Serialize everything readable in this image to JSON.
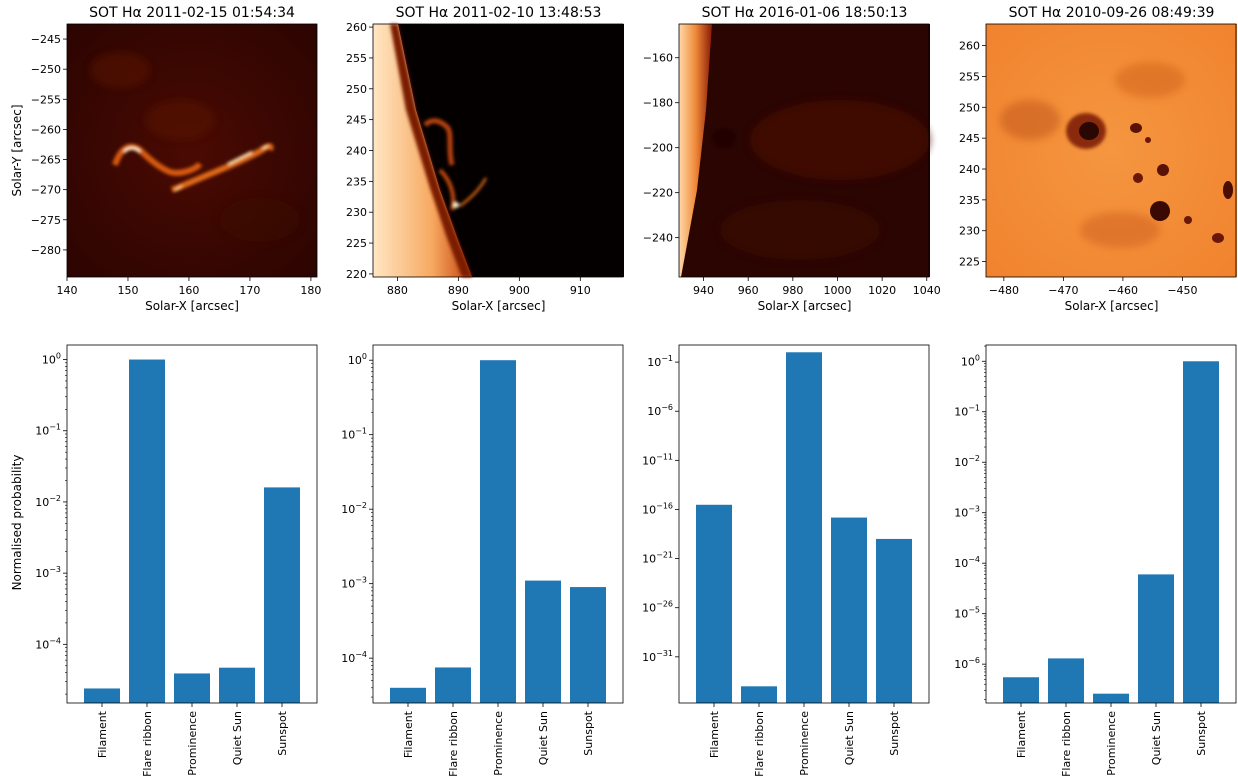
{
  "chart_data": [
    {
      "type": "heatmap",
      "title": "SOT Hα 2011-02-15 01:54:34",
      "xlabel": "Solar-X [arcsec]",
      "ylabel": "Solar-Y [arcsec]",
      "xlim": [
        140,
        181
      ],
      "ylim": [
        -284.5,
        -242.5
      ],
      "xticks": [
        "140",
        "150",
        "160",
        "170",
        "180"
      ],
      "yticks": [
        "−245",
        "−250",
        "−255",
        "−260",
        "−265",
        "−270",
        "−275",
        "−280"
      ],
      "colormap": "dark red / hot",
      "content": "flare ribbon"
    },
    {
      "type": "heatmap",
      "title": "SOT Hα 2011-02-10 13:48:53",
      "xlabel": "Solar-X [arcsec]",
      "ylabel": "",
      "xlim": [
        876,
        917
      ],
      "ylim": [
        219.5,
        260.5
      ],
      "xticks": [
        "880",
        "890",
        "900",
        "910"
      ],
      "yticks": [
        "220",
        "225",
        "230",
        "235",
        "240",
        "245",
        "250",
        "255",
        "260"
      ],
      "colormap": "orange / hot",
      "content": "prominence at the solar limb"
    },
    {
      "type": "heatmap",
      "title": "SOT Hα 2016-01-06 18:50:13",
      "xlabel": "Solar-X [arcsec]",
      "ylabel": "",
      "xlim": [
        929,
        1041
      ],
      "ylim": [
        -257.5,
        -145
      ],
      "xticks": [
        "940",
        "960",
        "980",
        "1000",
        "1020",
        "1040"
      ],
      "yticks": [
        "−160",
        "−180",
        "−200",
        "−220",
        "−240"
      ],
      "colormap": "dark red / hot",
      "content": "prominence at the solar limb"
    },
    {
      "type": "heatmap",
      "title": "SOT Hα 2010-09-26 08:49:39",
      "xlabel": "Solar-X [arcsec]",
      "ylabel": "",
      "xlim": [
        -483,
        -441
      ],
      "ylim": [
        222.5,
        263.5
      ],
      "xticks": [
        "−480",
        "−470",
        "−460",
        "−450"
      ],
      "yticks": [
        "225",
        "230",
        "235",
        "240",
        "245",
        "250",
        "255",
        "260"
      ],
      "colormap": "orange / hot",
      "content": "sunspots"
    },
    {
      "type": "bar",
      "yscale": "log",
      "ylabel": "Normalised probability",
      "categories": [
        "Filament",
        "Flare ribbon",
        "Prominence",
        "Quiet Sun",
        "Sunspot"
      ],
      "values": [
        2.4e-05,
        1.0,
        3.9e-05,
        4.7e-05,
        0.016
      ],
      "ylim": [
        1.5e-05,
        1.6
      ],
      "yticks": [
        {
          "v": 0.0001,
          "base": "10",
          "exp": "−4"
        },
        {
          "v": 0.001,
          "base": "10",
          "exp": "−3"
        },
        {
          "v": 0.01,
          "base": "10",
          "exp": "−2"
        },
        {
          "v": 0.1,
          "base": "10",
          "exp": "−1"
        },
        {
          "v": 1,
          "base": "10",
          "exp": "0"
        }
      ],
      "color": "#1f77b4"
    },
    {
      "type": "bar",
      "yscale": "log",
      "ylabel": "",
      "categories": [
        "Filament",
        "Flare ribbon",
        "Prominence",
        "Quiet Sun",
        "Sunspot"
      ],
      "values": [
        4e-05,
        7.5e-05,
        1.0,
        0.0011,
        0.0009
      ],
      "ylim": [
        2.5e-05,
        1.6
      ],
      "yticks": [
        {
          "v": 0.0001,
          "base": "10",
          "exp": "−4"
        },
        {
          "v": 0.001,
          "base": "10",
          "exp": "−3"
        },
        {
          "v": 0.01,
          "base": "10",
          "exp": "−2"
        },
        {
          "v": 0.1,
          "base": "10",
          "exp": "−1"
        },
        {
          "v": 1,
          "base": "10",
          "exp": "0"
        }
      ],
      "color": "#1f77b4"
    },
    {
      "type": "bar",
      "yscale": "log",
      "ylabel": "",
      "categories": [
        "Filament",
        "Flare ribbon",
        "Prominence",
        "Quiet Sun",
        "Sunspot"
      ],
      "values": [
        3e-16,
        1e-34,
        1.0,
        1.5e-17,
        1e-19
      ],
      "ylim": [
        2e-36,
        5.5
      ],
      "yticks": [
        {
          "v": 1e-31,
          "base": "10",
          "exp": "−31"
        },
        {
          "v": 1e-26,
          "base": "10",
          "exp": "−26"
        },
        {
          "v": 1e-21,
          "base": "10",
          "exp": "−21"
        },
        {
          "v": 1e-16,
          "base": "10",
          "exp": "−16"
        },
        {
          "v": 1e-11,
          "base": "10",
          "exp": "−11"
        },
        {
          "v": 1e-06,
          "base": "10",
          "exp": "−6"
        },
        {
          "v": 0.1,
          "base": "10",
          "exp": "−1"
        }
      ],
      "color": "#1f77b4"
    },
    {
      "type": "bar",
      "yscale": "log",
      "ylabel": "",
      "categories": [
        "Filament",
        "Flare ribbon",
        "Prominence",
        "Quiet Sun",
        "Sunspot"
      ],
      "values": [
        5.5e-07,
        1.3e-06,
        2.6e-07,
        6e-05,
        1.0
      ],
      "ylim": [
        1.7e-07,
        2.1
      ],
      "yticks": [
        {
          "v": 1e-06,
          "base": "10",
          "exp": "−6"
        },
        {
          "v": 1e-05,
          "base": "10",
          "exp": "−5"
        },
        {
          "v": 0.0001,
          "base": "10",
          "exp": "−4"
        },
        {
          "v": 0.001,
          "base": "10",
          "exp": "−3"
        },
        {
          "v": 0.01,
          "base": "10",
          "exp": "−2"
        },
        {
          "v": 0.1,
          "base": "10",
          "exp": "−1"
        },
        {
          "v": 1,
          "base": "10",
          "exp": "0"
        }
      ],
      "color": "#1f77b4"
    }
  ]
}
